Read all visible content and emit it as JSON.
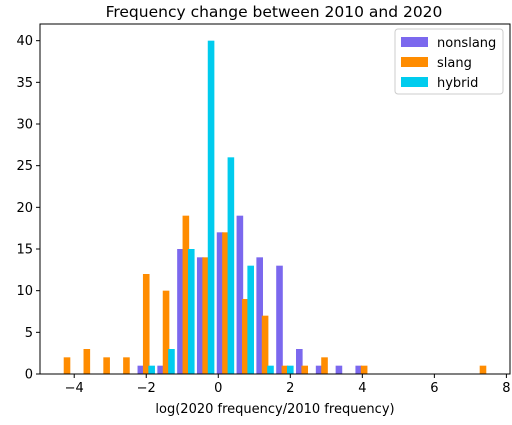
{
  "chart_data": {
    "type": "bar",
    "title": "Frequency change between 2010 and 2020",
    "xlabel": "log(2020 frequency/2010 frequency)",
    "ylabel": "",
    "xlim": [
      -4.95,
      8.1
    ],
    "ylim": [
      0,
      42
    ],
    "xticks": [
      -4,
      -2,
      0,
      2,
      4,
      6,
      8
    ],
    "yticks": [
      0,
      5,
      10,
      15,
      20,
      25,
      30,
      35,
      40
    ],
    "bin_width": 0.55,
    "grid": false,
    "legend_position": "top-right",
    "series": [
      {
        "name": "nonslang",
        "color": "#7b68ee",
        "bins": [
          {
            "x": -2.15,
            "value": 1
          },
          {
            "x": -1.6,
            "value": 1
          },
          {
            "x": -1.05,
            "value": 15
          },
          {
            "x": -0.5,
            "value": 14
          },
          {
            "x": 0.05,
            "value": 17
          },
          {
            "x": 0.6,
            "value": 19
          },
          {
            "x": 1.15,
            "value": 14
          },
          {
            "x": 1.7,
            "value": 13
          },
          {
            "x": 2.25,
            "value": 3
          },
          {
            "x": 2.8,
            "value": 1
          },
          {
            "x": 3.35,
            "value": 1
          },
          {
            "x": 3.9,
            "value": 1
          }
        ]
      },
      {
        "name": "slang",
        "color": "#ff8c00",
        "bins": [
          {
            "x": -4.2,
            "value": 2
          },
          {
            "x": -3.65,
            "value": 3
          },
          {
            "x": -3.1,
            "value": 2
          },
          {
            "x": -2.55,
            "value": 2
          },
          {
            "x": -2.0,
            "value": 12
          },
          {
            "x": -1.45,
            "value": 10
          },
          {
            "x": -0.9,
            "value": 19
          },
          {
            "x": -0.35,
            "value": 14
          },
          {
            "x": 0.2,
            "value": 17
          },
          {
            "x": 0.75,
            "value": 9
          },
          {
            "x": 1.3,
            "value": 7
          },
          {
            "x": 1.85,
            "value": 1
          },
          {
            "x": 2.4,
            "value": 1
          },
          {
            "x": 2.95,
            "value": 2
          },
          {
            "x": 4.05,
            "value": 1
          },
          {
            "x": 7.35,
            "value": 1
          }
        ]
      },
      {
        "name": "hybrid",
        "color": "#00ccee",
        "bins": [
          {
            "x": -1.85,
            "value": 1
          },
          {
            "x": -1.3,
            "value": 3
          },
          {
            "x": -0.75,
            "value": 15
          },
          {
            "x": -0.2,
            "value": 40
          },
          {
            "x": 0.35,
            "value": 26
          },
          {
            "x": 0.9,
            "value": 13
          },
          {
            "x": 1.45,
            "value": 1
          },
          {
            "x": 2.0,
            "value": 1
          }
        ]
      }
    ]
  }
}
